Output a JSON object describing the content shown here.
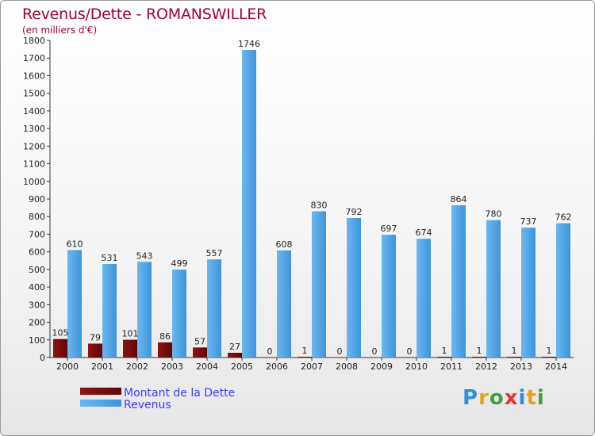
{
  "chart_data": {
    "type": "bar",
    "title": "Revenus/Dette - ROMANSWILLER",
    "subtitle": "(en milliers d'€)",
    "categories": [
      "2000",
      "2001",
      "2002",
      "2003",
      "2004",
      "2005",
      "2006",
      "2007",
      "2008",
      "2009",
      "2010",
      "2011",
      "2012",
      "2013",
      "2014"
    ],
    "series": [
      {
        "name": "Montant de la Dette",
        "color": "#7a0c0c",
        "values": [
          105,
          79,
          101,
          86,
          57,
          27,
          0,
          1,
          0,
          0,
          0,
          1,
          1,
          1,
          1
        ]
      },
      {
        "name": "Revenus",
        "color": "#4aa3e6",
        "values": [
          610,
          531,
          543,
          499,
          557,
          1746,
          608,
          830,
          792,
          697,
          674,
          864,
          780,
          737,
          762
        ]
      }
    ],
    "ylim": [
      0,
      1800
    ],
    "yticks": [
      0,
      100,
      200,
      300,
      400,
      500,
      600,
      700,
      800,
      900,
      1000,
      1100,
      1200,
      1300,
      1400,
      1500,
      1600,
      1700,
      1800
    ],
    "grid": false,
    "legend": "bottom-left"
  },
  "logo": {
    "letters": [
      "P",
      "r",
      "o",
      "x",
      "i",
      "t",
      "i"
    ],
    "colors": [
      "#2f8fd8",
      "#e8a020",
      "#40a040",
      "#e83030",
      "#2f8fd8",
      "#e8a020",
      "#40a040"
    ]
  }
}
